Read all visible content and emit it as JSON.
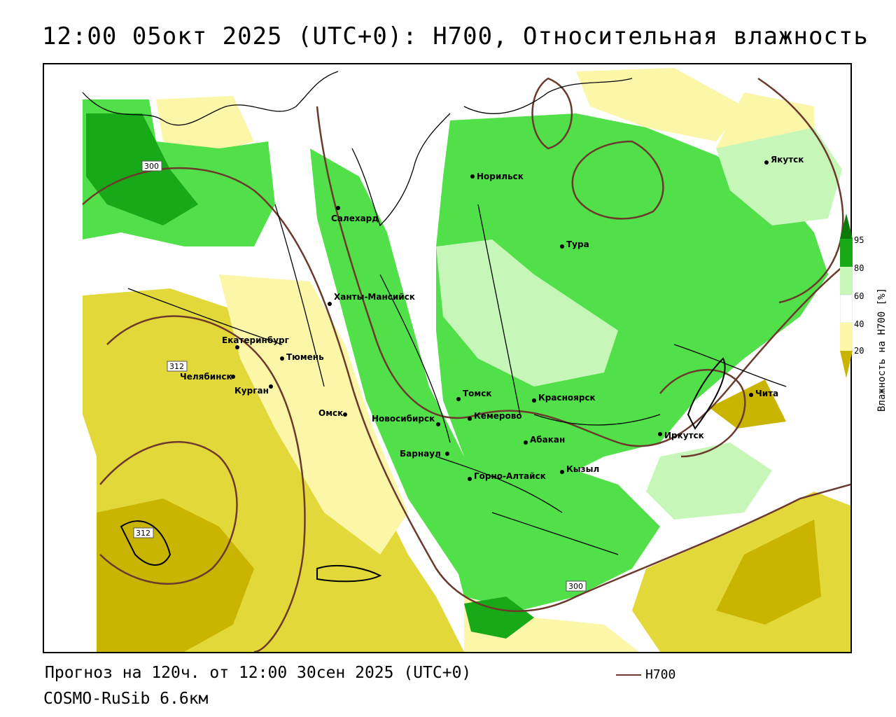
{
  "title": "12:00 05окт 2025 (UTC+0): H700, Относительная влажность",
  "footer": {
    "forecast": "Прогноз на 120ч. от 12:00 30сен 2025 (UTC+0)",
    "model": "COSMO-RuSib 6.6км"
  },
  "legend": {
    "line_label": "H700",
    "line_color": "#6b3a2c"
  },
  "scale": {
    "title": "Влажность на H700 [%]",
    "ticks": [
      "95",
      "80",
      "60",
      "40",
      "20"
    ],
    "colors": {
      "very_dry": "#c9b400",
      "dry": "#e3d83a",
      "semi_dry": "#fbf6a8",
      "neutral": "#ffffff",
      "moist": "#c6f7b8",
      "wet": "#52e04a",
      "very_wet": "#17a917",
      "saturated": "#0b7a0b"
    }
  },
  "contour_labels": [
    "300",
    "312",
    "312",
    "300"
  ],
  "cities": [
    {
      "name": "Норильск"
    },
    {
      "name": "Якутск"
    },
    {
      "name": "Салехард"
    },
    {
      "name": "Тура"
    },
    {
      "name": "Ханты-Мансийск"
    },
    {
      "name": "Екатеринбург"
    },
    {
      "name": "Тюмень"
    },
    {
      "name": "Челябинск"
    },
    {
      "name": "Курган"
    },
    {
      "name": "Омск"
    },
    {
      "name": "Новосибирск"
    },
    {
      "name": "Томск"
    },
    {
      "name": "Кемерово"
    },
    {
      "name": "Красноярск"
    },
    {
      "name": "Барнаул"
    },
    {
      "name": "Абакан"
    },
    {
      "name": "Горно-Алтайск"
    },
    {
      "name": "Кызыл"
    },
    {
      "name": "Иркутск"
    },
    {
      "name": "Чита"
    }
  ]
}
